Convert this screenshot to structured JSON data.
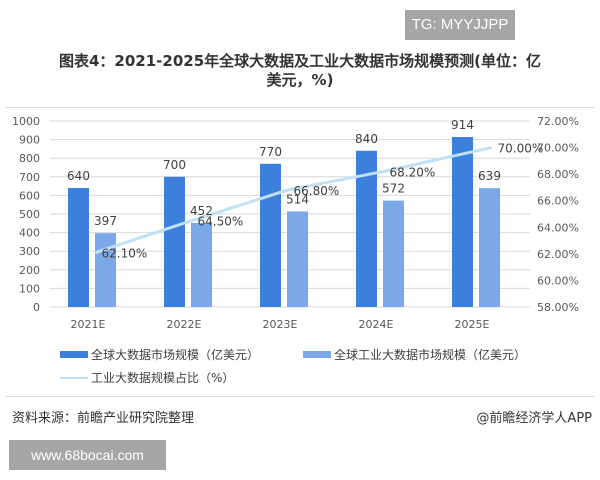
{
  "watermark_top": "TG: MYYJJPP",
  "watermark_bottom": "www.68bocai.com",
  "footer": {
    "source": "资料来源：前瞻产业研究院整理",
    "credit": "@前瞻经济学人APP"
  },
  "colors": {
    "global_bar": "#3c7fdc",
    "industrial_bar": "#7ba9e8",
    "share_line": "#bfe0f5",
    "grid": "#d9d9d9"
  },
  "chart_data": {
    "type": "bar",
    "title": "图表4：2021-2025年全球大数据及工业大数据市场规模预测(单位：亿美元，%)",
    "title_line1": "图表4：2021-2025年全球大数据及工业大数据市场规模预测(单位：亿",
    "title_line2": "美元，%)",
    "categories": [
      "2021E",
      "2022E",
      "2023E",
      "2024E",
      "2025E"
    ],
    "series": [
      {
        "name": "全球大数据市场规模（亿美元）",
        "type": "bar",
        "axis": "left",
        "values": [
          640,
          700,
          770,
          840,
          914
        ],
        "labels": [
          "640",
          "700",
          "770",
          "840",
          "914"
        ]
      },
      {
        "name": "全球工业大数据市场规模（亿美元）",
        "type": "bar",
        "axis": "left",
        "values": [
          397,
          452,
          514,
          572,
          639
        ],
        "labels": [
          "397",
          "452",
          "514",
          "572",
          "639"
        ]
      },
      {
        "name": "工业大数据规模占比（%）",
        "type": "line",
        "axis": "right",
        "values": [
          62.1,
          64.5,
          66.8,
          68.2,
          70.0
        ],
        "labels": [
          "62.10%",
          "64.50%",
          "66.80%",
          "68.20%",
          "70.00%"
        ]
      }
    ],
    "left_axis": {
      "ylim": [
        0,
        1000
      ],
      "ticks": [
        "0",
        "100",
        "200",
        "300",
        "400",
        "500",
        "600",
        "700",
        "800",
        "900",
        "1000"
      ]
    },
    "right_axis": {
      "ylim": [
        58,
        72
      ],
      "ticks": [
        "58.00%",
        "60.00%",
        "62.00%",
        "64.00%",
        "66.00%",
        "68.00%",
        "70.00%",
        "72.00%"
      ]
    },
    "grid": true,
    "legend_position": "bottom",
    "xlabel": "",
    "ylabel": ""
  }
}
